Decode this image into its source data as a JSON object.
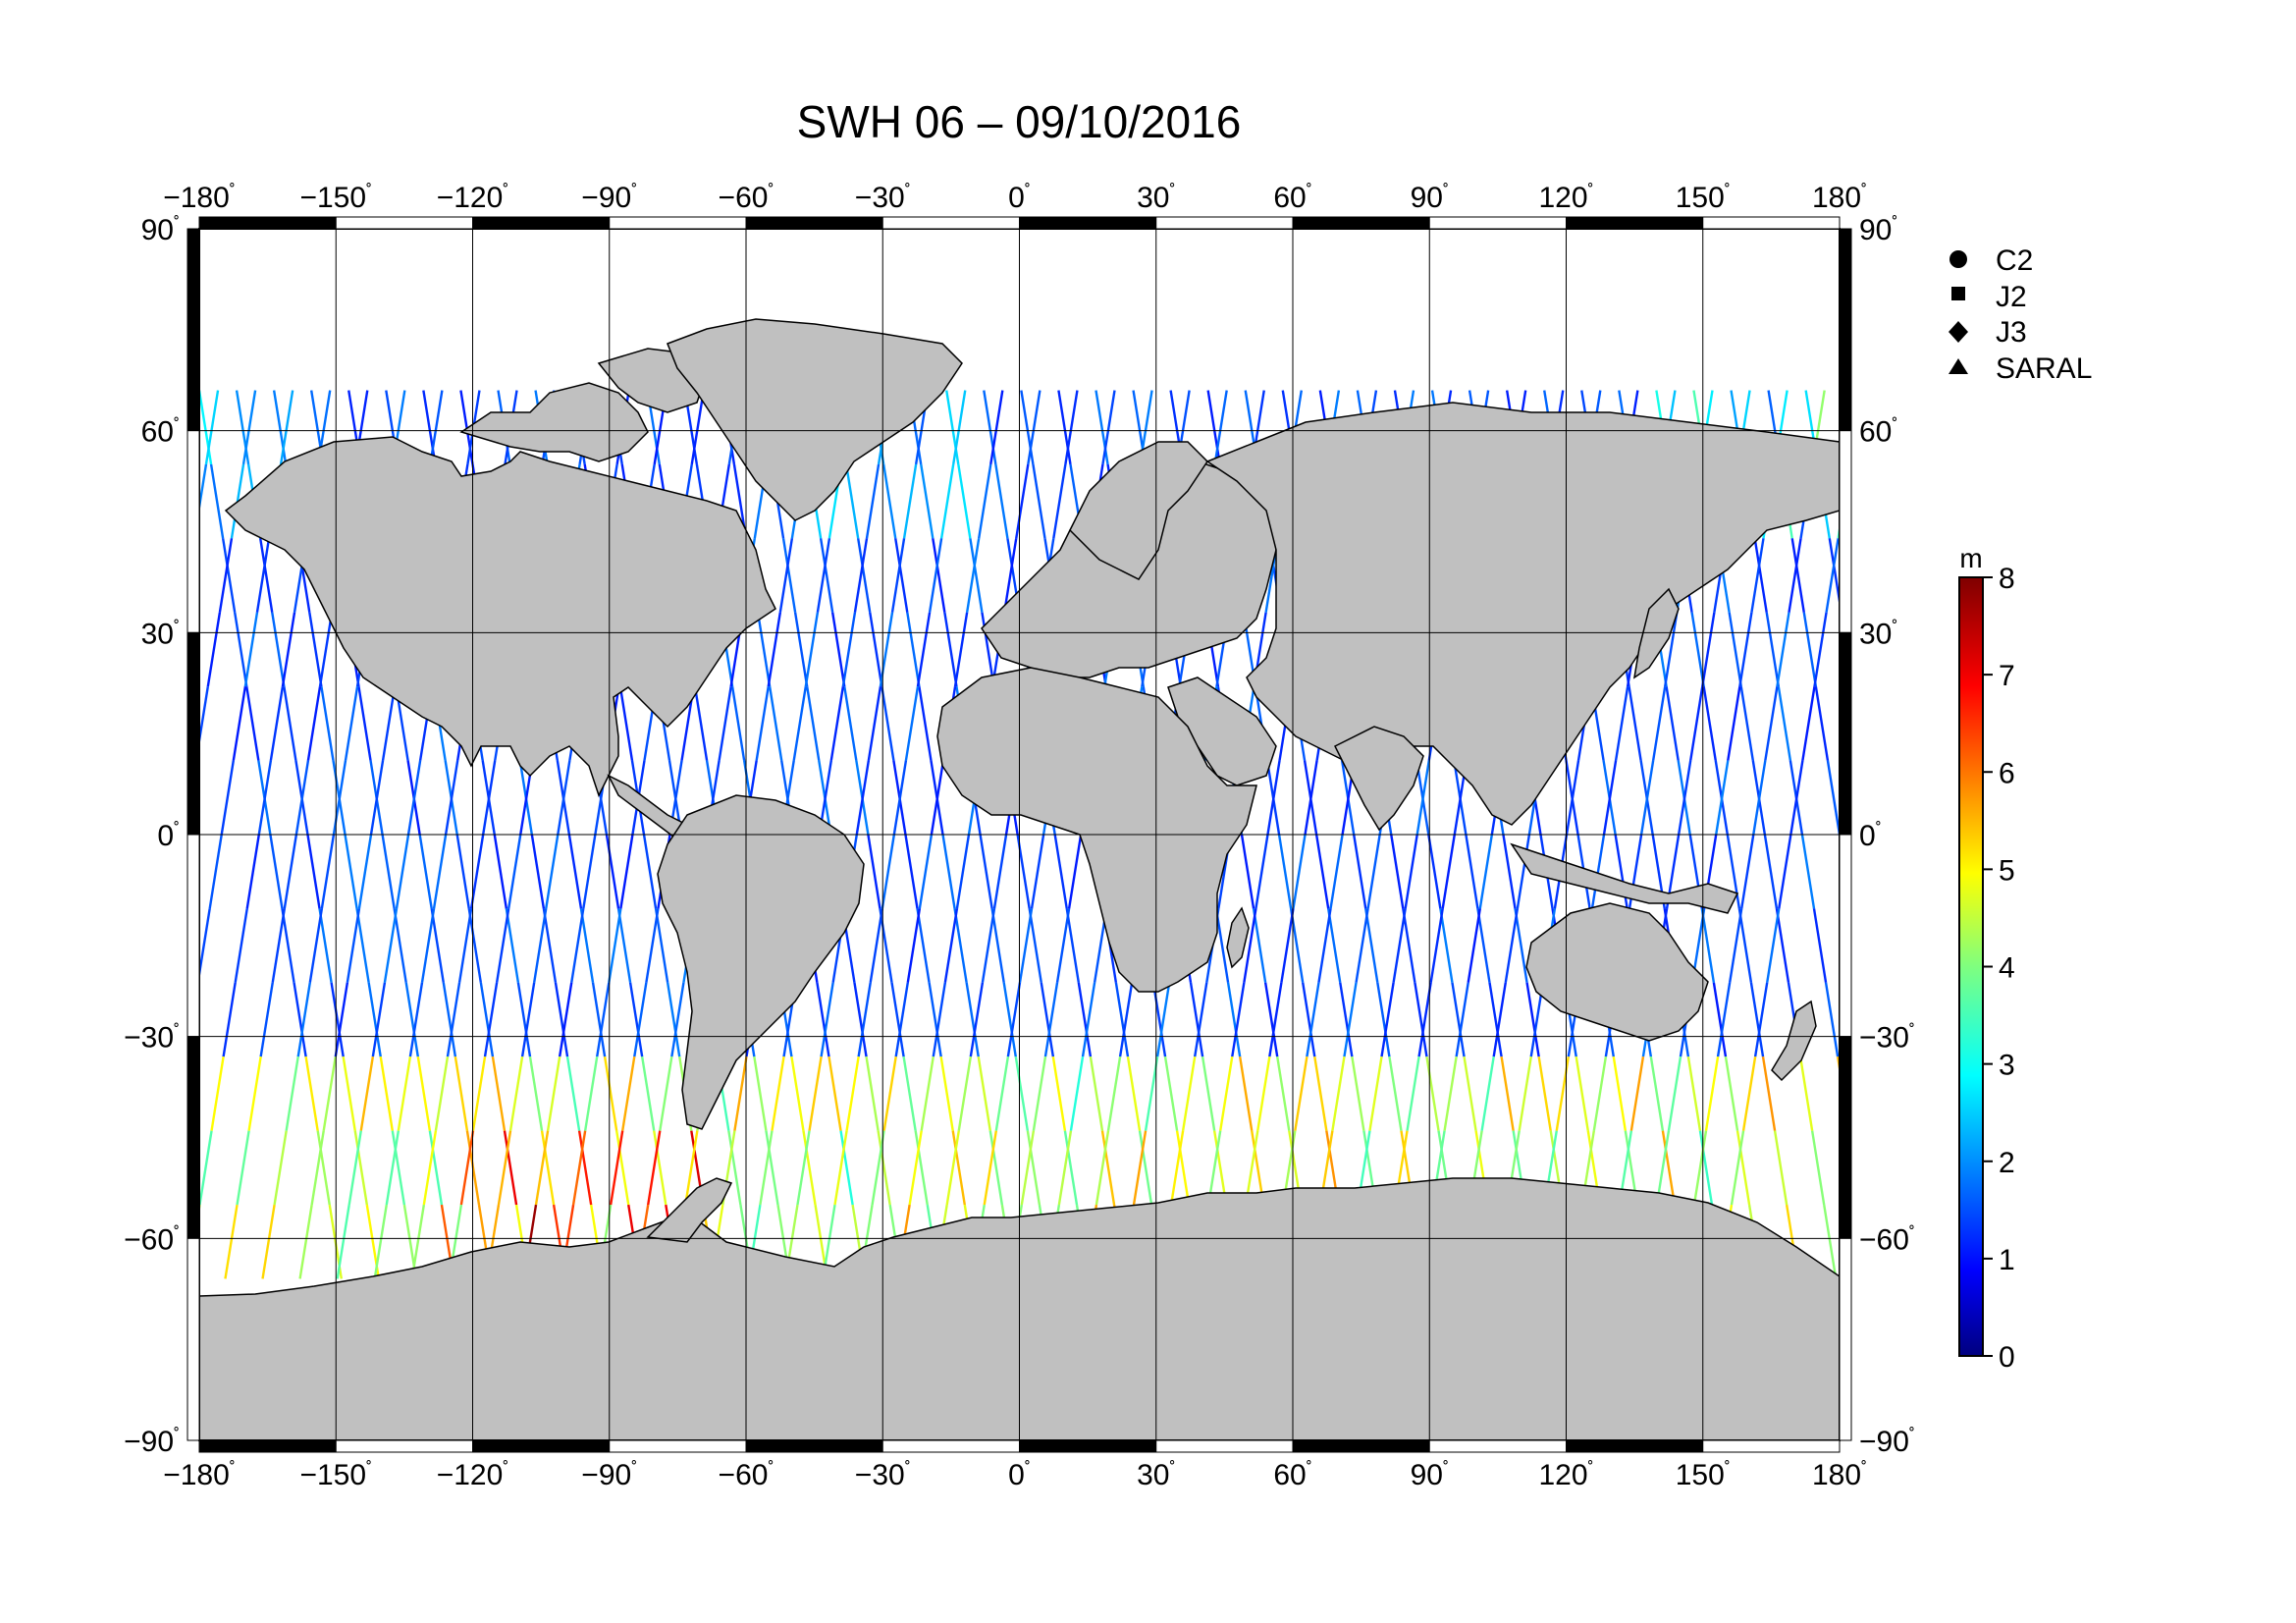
{
  "title": "SWH 06 – 09/10/2016",
  "lon_ticks": [
    "−180",
    "−150",
    "−120",
    "−90",
    "−60",
    "−30",
    "0",
    "30",
    "60",
    "90",
    "120",
    "150",
    "180"
  ],
  "lat_ticks": [
    "90",
    "60",
    "30",
    "0",
    "−30",
    "−60",
    "−90"
  ],
  "degree_symbol": "˚",
  "legend": [
    {
      "label": "C2",
      "marker": "circle"
    },
    {
      "label": "J2",
      "marker": "square"
    },
    {
      "label": "J3",
      "marker": "diamond"
    },
    {
      "label": "SARAL",
      "marker": "triangle"
    }
  ],
  "colorbar": {
    "unit": "m",
    "min": 0,
    "max": 8,
    "tick_labels": [
      "8",
      "7",
      "6",
      "5",
      "4",
      "3",
      "2",
      "1",
      "0"
    ],
    "colormap": "jet"
  },
  "colors": {
    "land": "#c0c0c0",
    "ocean": "#ffffff",
    "frame": "#000000"
  }
}
